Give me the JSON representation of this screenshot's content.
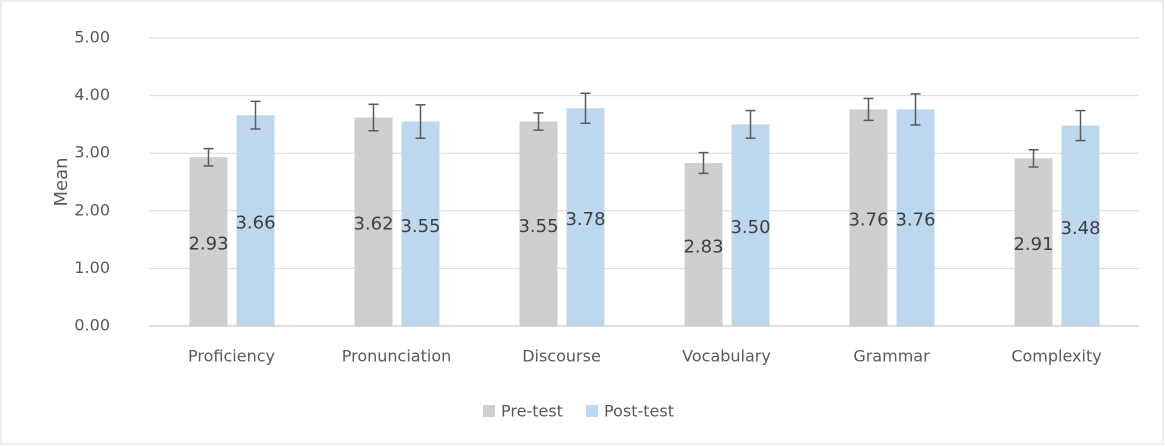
{
  "chart_data": {
    "type": "bar",
    "y_label": "Mean",
    "categories": [
      "Proficiency",
      "Pronunciation",
      "Discourse",
      "Vocabulary",
      "Grammar",
      "Complexity"
    ],
    "series": [
      {
        "name": "Pre-test",
        "color": "#d0cece",
        "values": [
          2.93,
          3.62,
          3.55,
          2.83,
          3.76,
          2.91
        ],
        "value_labels": [
          "2.93",
          "3.62",
          "3.55",
          "2.83",
          "3.76",
          "2.91"
        ],
        "errors": [
          0.15,
          0.23,
          0.15,
          0.18,
          0.19,
          0.15
        ]
      },
      {
        "name": "Post-test",
        "color": "#bdd7ee",
        "values": [
          3.66,
          3.55,
          3.78,
          3.5,
          3.76,
          3.48
        ],
        "value_labels": [
          "3.66",
          "3.55",
          "3.78",
          "3.50",
          "3.76",
          "3.48"
        ],
        "errors": [
          0.24,
          0.29,
          0.26,
          0.24,
          0.27,
          0.26
        ]
      }
    ],
    "ylim": [
      0,
      5
    ],
    "yticks": [
      {
        "value": 0,
        "label": "0.00"
      },
      {
        "value": 1,
        "label": "1.00"
      },
      {
        "value": 2,
        "label": "2.00"
      },
      {
        "value": 3,
        "label": "3.00"
      },
      {
        "value": 4,
        "label": "4.00"
      },
      {
        "value": 5,
        "label": "5.00"
      }
    ],
    "grid": true,
    "legend": "bottom"
  }
}
